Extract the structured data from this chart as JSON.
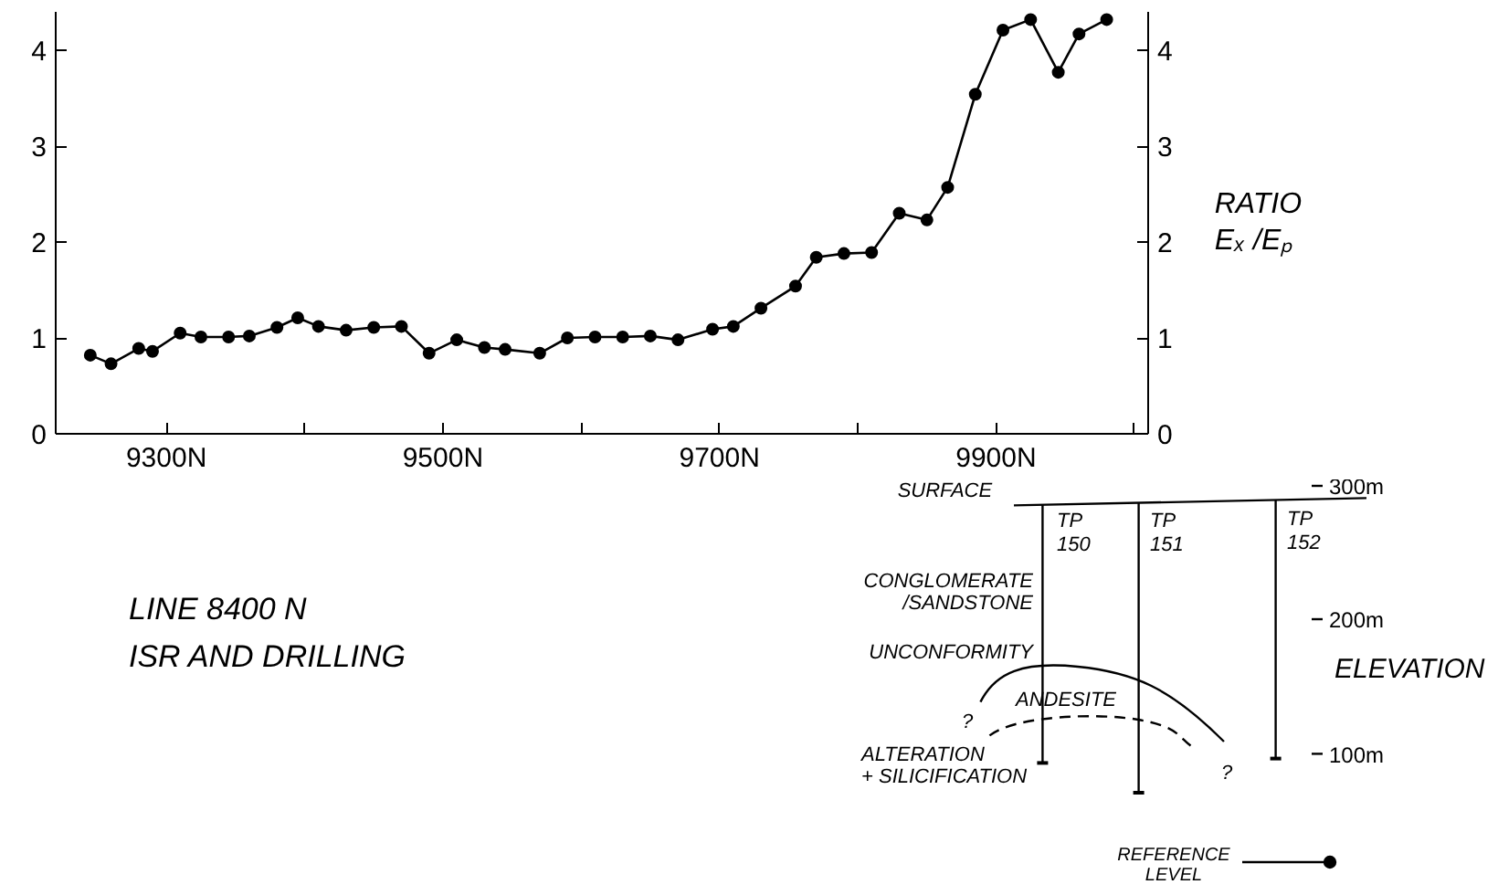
{
  "chart_data": {
    "type": "line",
    "title": "LINE  8400 N\nISR AND DRILLING",
    "y2label": "RATIO\nEₓ /Eₚ",
    "x": [
      9245,
      9260,
      9280,
      9290,
      9310,
      9325,
      9345,
      9360,
      9380,
      9395,
      9410,
      9430,
      9450,
      9470,
      9490,
      9510,
      9530,
      9545,
      9570,
      9590,
      9610,
      9630,
      9650,
      9670,
      9695,
      9710,
      9730,
      9755,
      9770,
      9790,
      9810,
      9830,
      9850,
      9865,
      9885,
      9905,
      9925,
      9945,
      9960,
      9980
    ],
    "series": [
      {
        "color": "#000000",
        "values": [
          0.82,
          0.73,
          0.89,
          0.86,
          1.05,
          1.01,
          1.01,
          1.02,
          1.11,
          1.21,
          1.12,
          1.08,
          1.11,
          1.12,
          0.84,
          0.98,
          0.9,
          0.88,
          0.84,
          1.0,
          1.01,
          1.01,
          1.02,
          0.98,
          1.09,
          1.12,
          1.31,
          1.54,
          1.84,
          1.88,
          1.89,
          2.3,
          2.23,
          2.57,
          3.54,
          4.21,
          4.32,
          3.77,
          4.17,
          4.32
        ]
      }
    ],
    "marker": "circle",
    "line_style": "solid",
    "xlim": [
      9220,
      10010
    ],
    "xticks": [
      {
        "value": 9300,
        "label": "9300N"
      },
      {
        "value": 9400,
        "label": null
      },
      {
        "value": 9500,
        "label": "9500N"
      },
      {
        "value": 9600,
        "label": null
      },
      {
        "value": 9700,
        "label": "9700N"
      },
      {
        "value": 9800,
        "label": null
      },
      {
        "value": 9900,
        "label": "9900N"
      },
      {
        "value": 10000,
        "label": null
      }
    ],
    "ylim": [
      0,
      4.4
    ],
    "yticks": [
      0,
      1,
      2,
      3,
      4
    ],
    "y2lim": [
      0,
      4.4
    ],
    "y2ticks": [
      0,
      1,
      2,
      3,
      4
    ],
    "annotations": [
      "SURFACE",
      "TP\n150",
      "TP\n151",
      "TP\n152",
      "CONGLOMERATE\n/SANDSTONE",
      "UNCONFORMITY",
      "ANDESITE",
      "?",
      "?",
      "ALTERATION\n+ SILICIFICATION",
      "ELEVATION",
      "300m",
      "200m",
      "100m",
      "REFERENCE\nLEVEL"
    ]
  }
}
